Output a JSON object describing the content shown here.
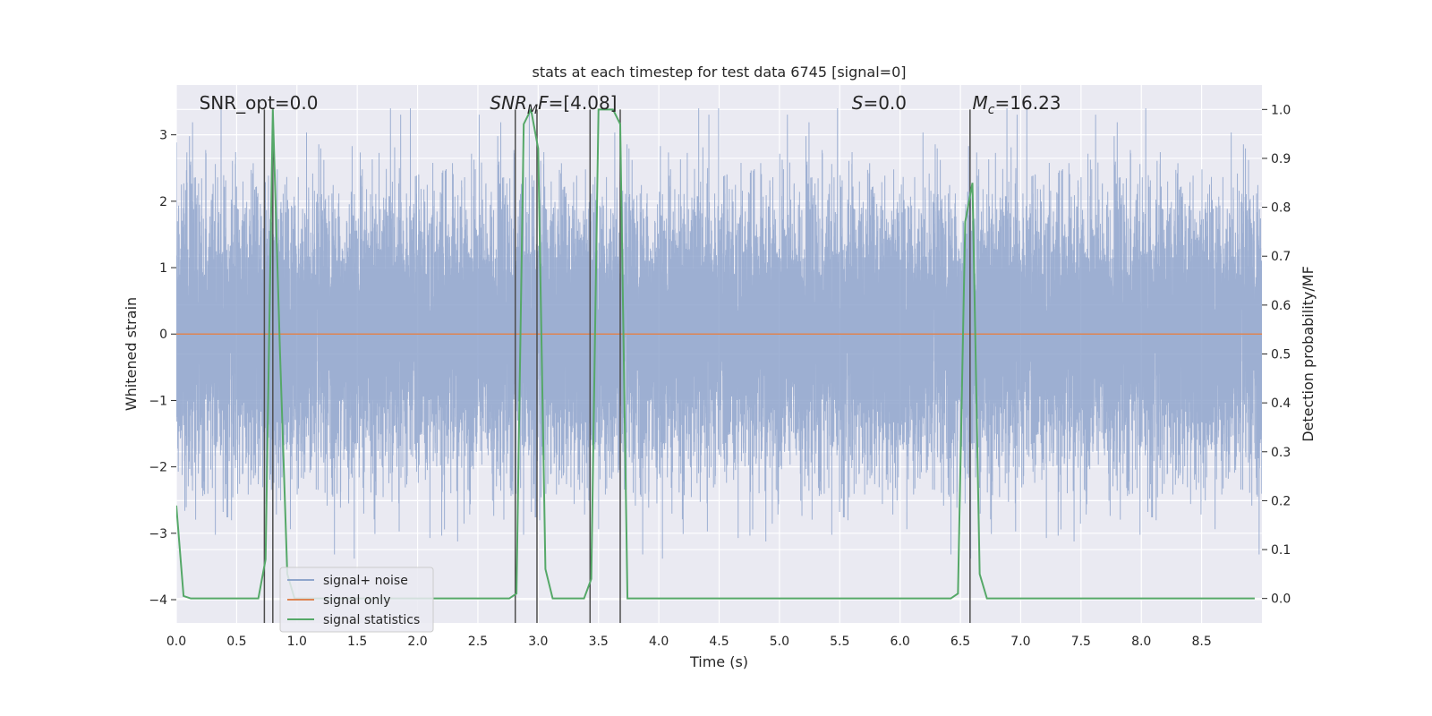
{
  "chart_data": {
    "type": "line",
    "title": "stats at each timestep for test data 6745 [signal=0]",
    "xlabel": "Time (s)",
    "ylabel_left": "Whitened strain",
    "ylabel_right": "Detection probability/MF",
    "xlim": [
      0.0,
      9.0
    ],
    "ylim_left": [
      -4.35,
      3.75
    ],
    "ylim_right": [
      -0.05,
      1.05
    ],
    "x_ticks": [
      0.0,
      0.5,
      1.0,
      1.5,
      2.0,
      2.5,
      3.0,
      3.5,
      4.0,
      4.5,
      5.0,
      5.5,
      6.0,
      6.5,
      7.0,
      7.5,
      8.0,
      8.5
    ],
    "x_tick_labels": [
      "0.0",
      "0.5",
      "1.0",
      "1.5",
      "2.0",
      "2.5",
      "3.0",
      "3.5",
      "4.0",
      "4.5",
      "5.0",
      "5.5",
      "6.0",
      "6.5",
      "7.0",
      "7.5",
      "8.0",
      "8.5"
    ],
    "y_left_ticks": [
      -4,
      -3,
      -2,
      -1,
      0,
      1,
      2,
      3
    ],
    "y_left_tick_labels": [
      "−4",
      "−3",
      "−2",
      "−1",
      "0",
      "1",
      "2",
      "3"
    ],
    "y_right_ticks": [
      0.0,
      0.1,
      0.2,
      0.3,
      0.4,
      0.5,
      0.6,
      0.7,
      0.8,
      0.9,
      1.0
    ],
    "y_right_tick_labels": [
      "0.0",
      "0.1",
      "0.2",
      "0.3",
      "0.4",
      "0.5",
      "0.6",
      "0.7",
      "0.8",
      "0.9",
      "1.0"
    ],
    "grid": true,
    "legend_position": "lower-left",
    "annotations": {
      "snr_opt": "SNR_opt=0.0",
      "snr_mf_prefix": "SNR",
      "snr_mf_sub": "M",
      "snr_mf_suffix": "F",
      "snr_mf_value": "=[4.08]",
      "s_var": "S",
      "s_value": "=0.0",
      "mc_var": "M",
      "mc_sub": "c",
      "mc_value": "=16.23"
    },
    "series": [
      {
        "name": "signal+ noise",
        "axis": "left",
        "color": "#8fa5cc",
        "kind": "noise",
        "sample_rate_hz": 2048,
        "std": 1.0
      },
      {
        "name": "signal only",
        "axis": "left",
        "color": "#dd8452",
        "x": [
          0.0,
          9.0
        ],
        "y": [
          0.0,
          0.0
        ]
      },
      {
        "name": "signal statistics",
        "axis": "right",
        "color": "#55a868",
        "x": [
          0.0,
          0.06,
          0.12,
          0.68,
          0.74,
          0.8,
          0.86,
          0.92,
          0.98,
          1.04,
          1.1,
          2.76,
          2.82,
          2.88,
          2.94,
          3.0,
          3.06,
          3.12,
          3.38,
          3.44,
          3.5,
          3.56,
          3.62,
          3.68,
          3.74,
          3.8,
          6.42,
          6.48,
          6.54,
          6.6,
          6.66,
          6.72,
          6.78,
          8.94
        ],
        "y": [
          0.19,
          0.005,
          0.0,
          0.0,
          0.08,
          1.0,
          0.5,
          0.05,
          0.0,
          0.0,
          0.0,
          0.0,
          0.01,
          0.97,
          1.0,
          0.92,
          0.06,
          0.0,
          0.0,
          0.04,
          1.0,
          1.0,
          1.0,
          0.97,
          0.0,
          0.0,
          0.0,
          0.01,
          0.77,
          0.85,
          0.05,
          0.0,
          0.0,
          0.0
        ]
      }
    ],
    "vertical_markers": [
      0.73,
      0.8,
      2.81,
      2.99,
      3.43,
      3.68,
      6.58
    ]
  },
  "legend": {
    "items": [
      {
        "label": "signal+ noise",
        "color": "#8fa5cc"
      },
      {
        "label": "signal only",
        "color": "#dd8452"
      },
      {
        "label": "signal statistics",
        "color": "#55a868"
      }
    ]
  }
}
